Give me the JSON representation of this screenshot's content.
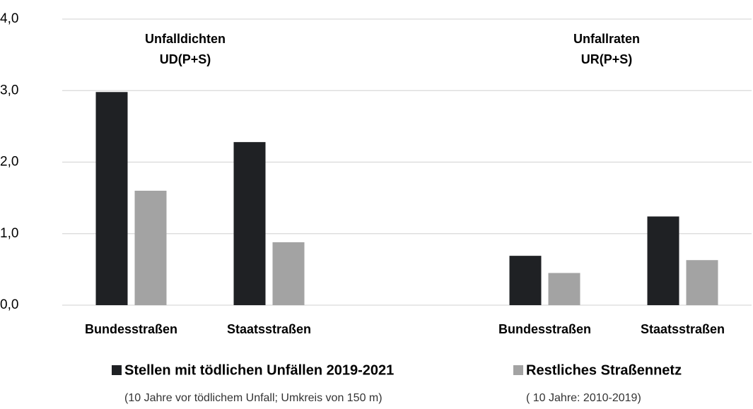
{
  "chart_data": {
    "type": "bar",
    "categories": [
      "Bundesstraßen",
      "Staatsstraßen",
      null,
      "Bundesstraßen",
      "Staatsstraßen"
    ],
    "series": [
      {
        "name": "Stellen mit tödlichen Unfällen 2019-2021",
        "note": "(10 Jahre vor tödlichem Unfall; Umkreis von 150 m)",
        "color": "#1f2124",
        "values": [
          2.98,
          2.28,
          null,
          0.69,
          1.24
        ]
      },
      {
        "name": "Restliches Straßennetz",
        "note": "( 10 Jahre: 2010-2019)",
        "color": "#a3a3a3",
        "values": [
          1.6,
          0.88,
          null,
          0.45,
          0.63
        ]
      }
    ],
    "annotations": [
      {
        "lines": [
          "Unfalldichten",
          "UD(P+S)"
        ]
      },
      {
        "lines": [
          "Unfallraten",
          "UR(P+S)"
        ]
      }
    ],
    "ylim": [
      0,
      4
    ],
    "yticks": [
      {
        "value": 0,
        "label": "0,0"
      },
      {
        "value": 1,
        "label": "1,0"
      },
      {
        "value": 2,
        "label": "2,0"
      },
      {
        "value": 3,
        "label": "3,0"
      },
      {
        "value": 4,
        "label": "4,0"
      }
    ],
    "grid": true
  }
}
